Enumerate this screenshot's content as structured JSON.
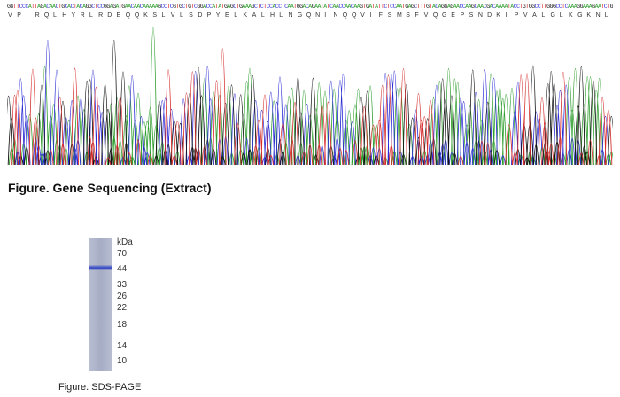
{
  "sequence": {
    "bases": "GGTTCCCATTAGACAACTGCACTACAGGCTCCGGAGATGAACAACAAAAAGCCTCGTGCTGTCGGACCATATGAGCTGAAAGCTCTCCACCTCAATGGACAGAATATCAACCAACAAGTGATATTCTCCAATGAGCTTTGTACAGGAGAACCAAGCAACGACAAAATACCTGTGGCCTTGGGCCTCAAAGGAAAGAATCTG",
    "amino_acids": [
      "V",
      "P",
      "I",
      "R",
      "Q",
      "L",
      "H",
      "Y",
      "R",
      "L",
      "R",
      "D",
      "E",
      "Q",
      "Q",
      "K",
      "S",
      "L",
      "V",
      "L",
      "S",
      "D",
      "P",
      "Y",
      "E",
      "L",
      "K",
      "A",
      "L",
      "H",
      "L",
      "N",
      "G",
      "Q",
      "N",
      "I",
      "N",
      "Q",
      "Q",
      "V",
      "I",
      "F",
      "S",
      "M",
      "S",
      "F",
      "V",
      "Q",
      "G",
      "E",
      "P",
      "S",
      "N",
      "D",
      "K",
      "I",
      "P",
      "V",
      "A",
      "L",
      "G",
      "L",
      "K",
      "G",
      "K",
      "N",
      "L"
    ],
    "base_colors": {
      "A": "#2e9e2e",
      "C": "#2b2bd6",
      "G": "#111111",
      "T": "#d62b2b"
    },
    "caption": "Figure. Gene Sequencing (Extract)"
  },
  "gel": {
    "unit": "kDa",
    "markers": [
      "70",
      "44",
      "33",
      "26",
      "22",
      "18",
      "14",
      "10"
    ],
    "band_marker": "44",
    "lane_color": "#aab0c8",
    "band_color": "#3a4bc4",
    "caption": "Figure. SDS-PAGE"
  }
}
